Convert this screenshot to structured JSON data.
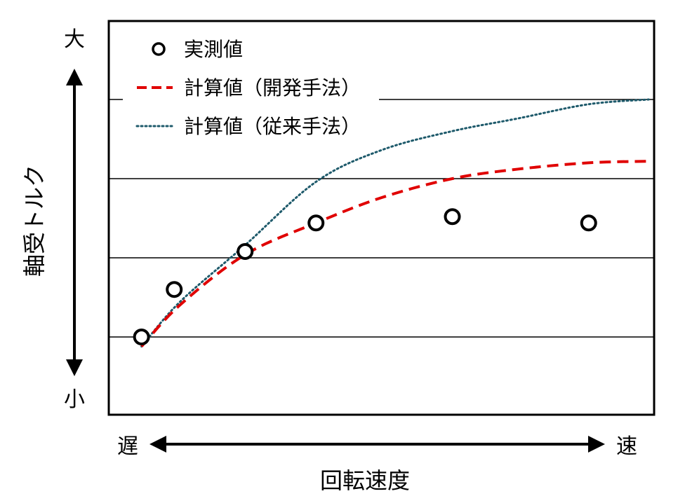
{
  "chart_data": {
    "type": "line",
    "title": "",
    "xlabel": "回転速度",
    "ylabel": "軸受トルク",
    "x_low_label": "遅",
    "x_high_label": "速",
    "y_low_label": "小",
    "y_high_label": "大",
    "xlim": [
      0,
      100
    ],
    "ylim": [
      0,
      100
    ],
    "gridlines_y": [
      25,
      50,
      75,
      100
    ],
    "grid": "horizontal",
    "legend_position": "top-left",
    "series": [
      {
        "name": "実測値",
        "style": "markers",
        "color": "#000000",
        "x": [
          6,
          12,
          25,
          38,
          63,
          88
        ],
        "y": [
          25,
          40,
          52,
          61,
          63,
          61
        ]
      },
      {
        "name": "計算値（開発手法）",
        "style": "dashed",
        "color": "#e00000",
        "x": [
          6,
          13,
          25,
          38,
          50,
          63,
          75,
          88,
          99
        ],
        "y": [
          22,
          35,
          51,
          61,
          69,
          75,
          78,
          80,
          80.5
        ]
      },
      {
        "name": "計算値（従来手法）",
        "style": "dotted",
        "color": "#1e5a6b",
        "x": [
          6,
          13,
          25,
          38,
          50,
          63,
          75,
          88,
          99
        ],
        "y": [
          22,
          36,
          54,
          74,
          84,
          90,
          94,
          98.5,
          100
        ]
      }
    ]
  }
}
